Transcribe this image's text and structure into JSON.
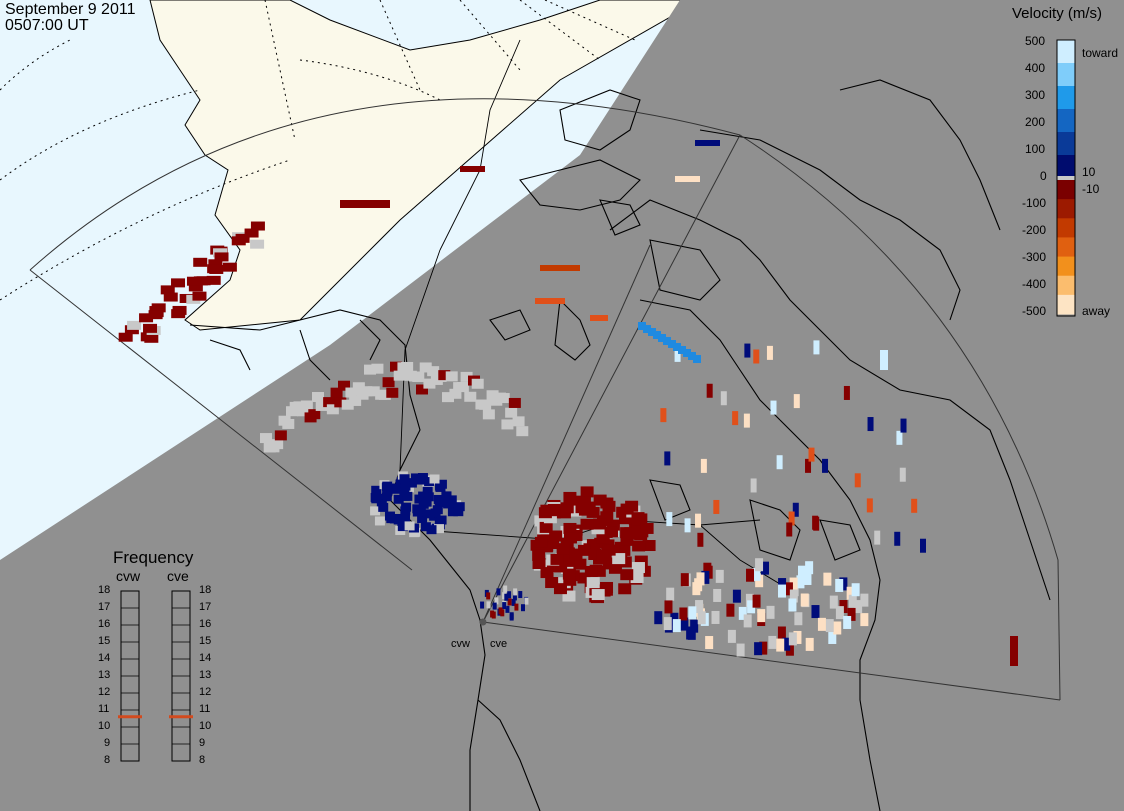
{
  "header": {
    "date": "September  9 2011",
    "time": "0507:00 UT"
  },
  "velocity_legend": {
    "title": "Velocity (m/s)",
    "ticks": [
      "500",
      "400",
      "300",
      "200",
      "100",
      "0",
      "10",
      "-10",
      "-100",
      "-200",
      "-300",
      "-400",
      "-500"
    ],
    "toward_label": "toward",
    "away_label": "away",
    "colors": [
      "#cfeeff",
      "#7fcdfa",
      "#1f9aea",
      "#1466c2",
      "#0a3a98",
      "#000c6e",
      "#7a0000",
      "#9c1a00",
      "#c23a00",
      "#e06010",
      "#f2901c",
      "#fbbd6e",
      "#fde4c4"
    ]
  },
  "radars": {
    "cvw_label": "cvw",
    "cve_label": "cve"
  },
  "frequency_legend": {
    "title": "Frequency",
    "left_label": "cvw",
    "right_label": "cve",
    "ticks": [
      "18",
      "17",
      "16",
      "15",
      "14",
      "13",
      "12",
      "11",
      "10",
      "9",
      "8"
    ],
    "cvw_value": 10.6,
    "cve_value": 10.6,
    "marker_color": "#d24a1e"
  },
  "colors": {
    "day_sky": "#e8f7fe",
    "land": "#fbf9ea",
    "night": "#909090",
    "ground_scatter": "#c8c8c8",
    "coast": "#000000"
  }
}
